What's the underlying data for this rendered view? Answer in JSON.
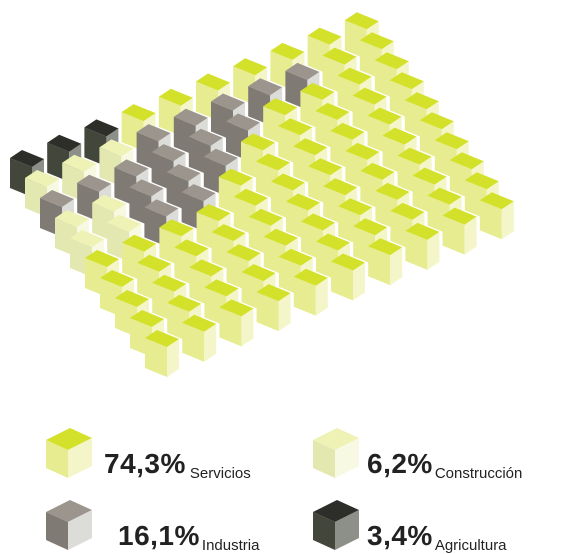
{
  "chart_data": {
    "type": "waffle",
    "units": 100,
    "series": [
      {
        "name": "Servicios",
        "label": "74,3%",
        "value": 74.3,
        "colors": {
          "top": "#d3e12a",
          "left": "#e6ec8f",
          "right": "#f4f6c9"
        }
      },
      {
        "name": "Construcción",
        "label": "6,2%",
        "value": 6.2,
        "colors": {
          "top": "#eef2b4",
          "left": "#e3e8b1",
          "right": "#f8f9e2"
        }
      },
      {
        "name": "Industria",
        "label": "16,1%",
        "value": 16.1,
        "colors": {
          "top": "#9b958d",
          "left": "#7f7a74",
          "right": "#dcdcd8"
        }
      },
      {
        "name": "Agricultura",
        "label": "3,4%",
        "value": 3.4,
        "colors": {
          "top": "#2d2e2a",
          "left": "#43463a",
          "right": "#8d8f89"
        }
      }
    ]
  }
}
